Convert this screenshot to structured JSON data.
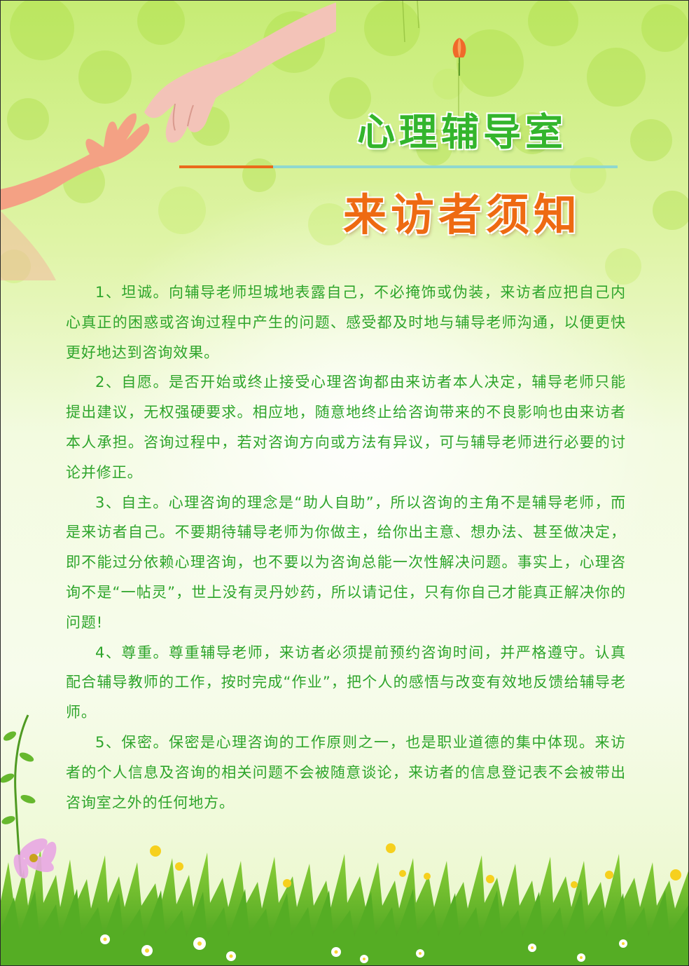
{
  "title": "心理辅导室",
  "subtitle": "来访者须知",
  "paragraphs": [
    "1、坦诚。向辅导老师坦城地表露自己，不必掩饰或伪装，来访者应把自己内心真正的困惑或咨询过程中产生的问题、感受都及时地与辅导老师沟通，以便更快更好地达到咨询效果。",
    "2、自愿。是否开始或终止接受心理咨询都由来访者本人决定，辅导老师只能提出建议，无权强硬要求。相应地，随意地终止给咨询带来的不良影响也由来访者本人承担。咨询过程中，若对咨询方向或方法有异议，可与辅导老师进行必要的讨论并修正。",
    "3、自主。心理咨询的理念是“助人自助”，所以咨询的主角不是辅导老师，而是来访者自己。不要期待辅导老师为你做主，给你出主意、想办法、甚至做决定，即不能过分依赖心理咨询，也不要以为咨询总能一次性解决问题。事实上，心理咨询不是“一帖灵”，世上没有灵丹妙药，所以请记住，只有你自己才能真正解决你的问题!",
    "4、尊重。尊重辅导老师，来访者必须提前预约咨询时间，并严格遵守。认真配合辅导教师的工作，按时完成“作业”，把个人的感悟与改变有效地反馈给辅导老师。",
    "5、保密。保密是心理咨询的工作原则之一，也是职业道德的集中体现。来访者的个人信息及咨询的相关问题不会被随意谈论，来访者的信息登记表不会被带出咨询室之外的任何地方。"
  ],
  "colors": {
    "title_green": "#33b52c",
    "subtitle_orange": "#ee6a12",
    "body_green": "#2ea52b",
    "rule_orange": "#ea6a1b",
    "rule_teal": "#8fd8cf"
  }
}
